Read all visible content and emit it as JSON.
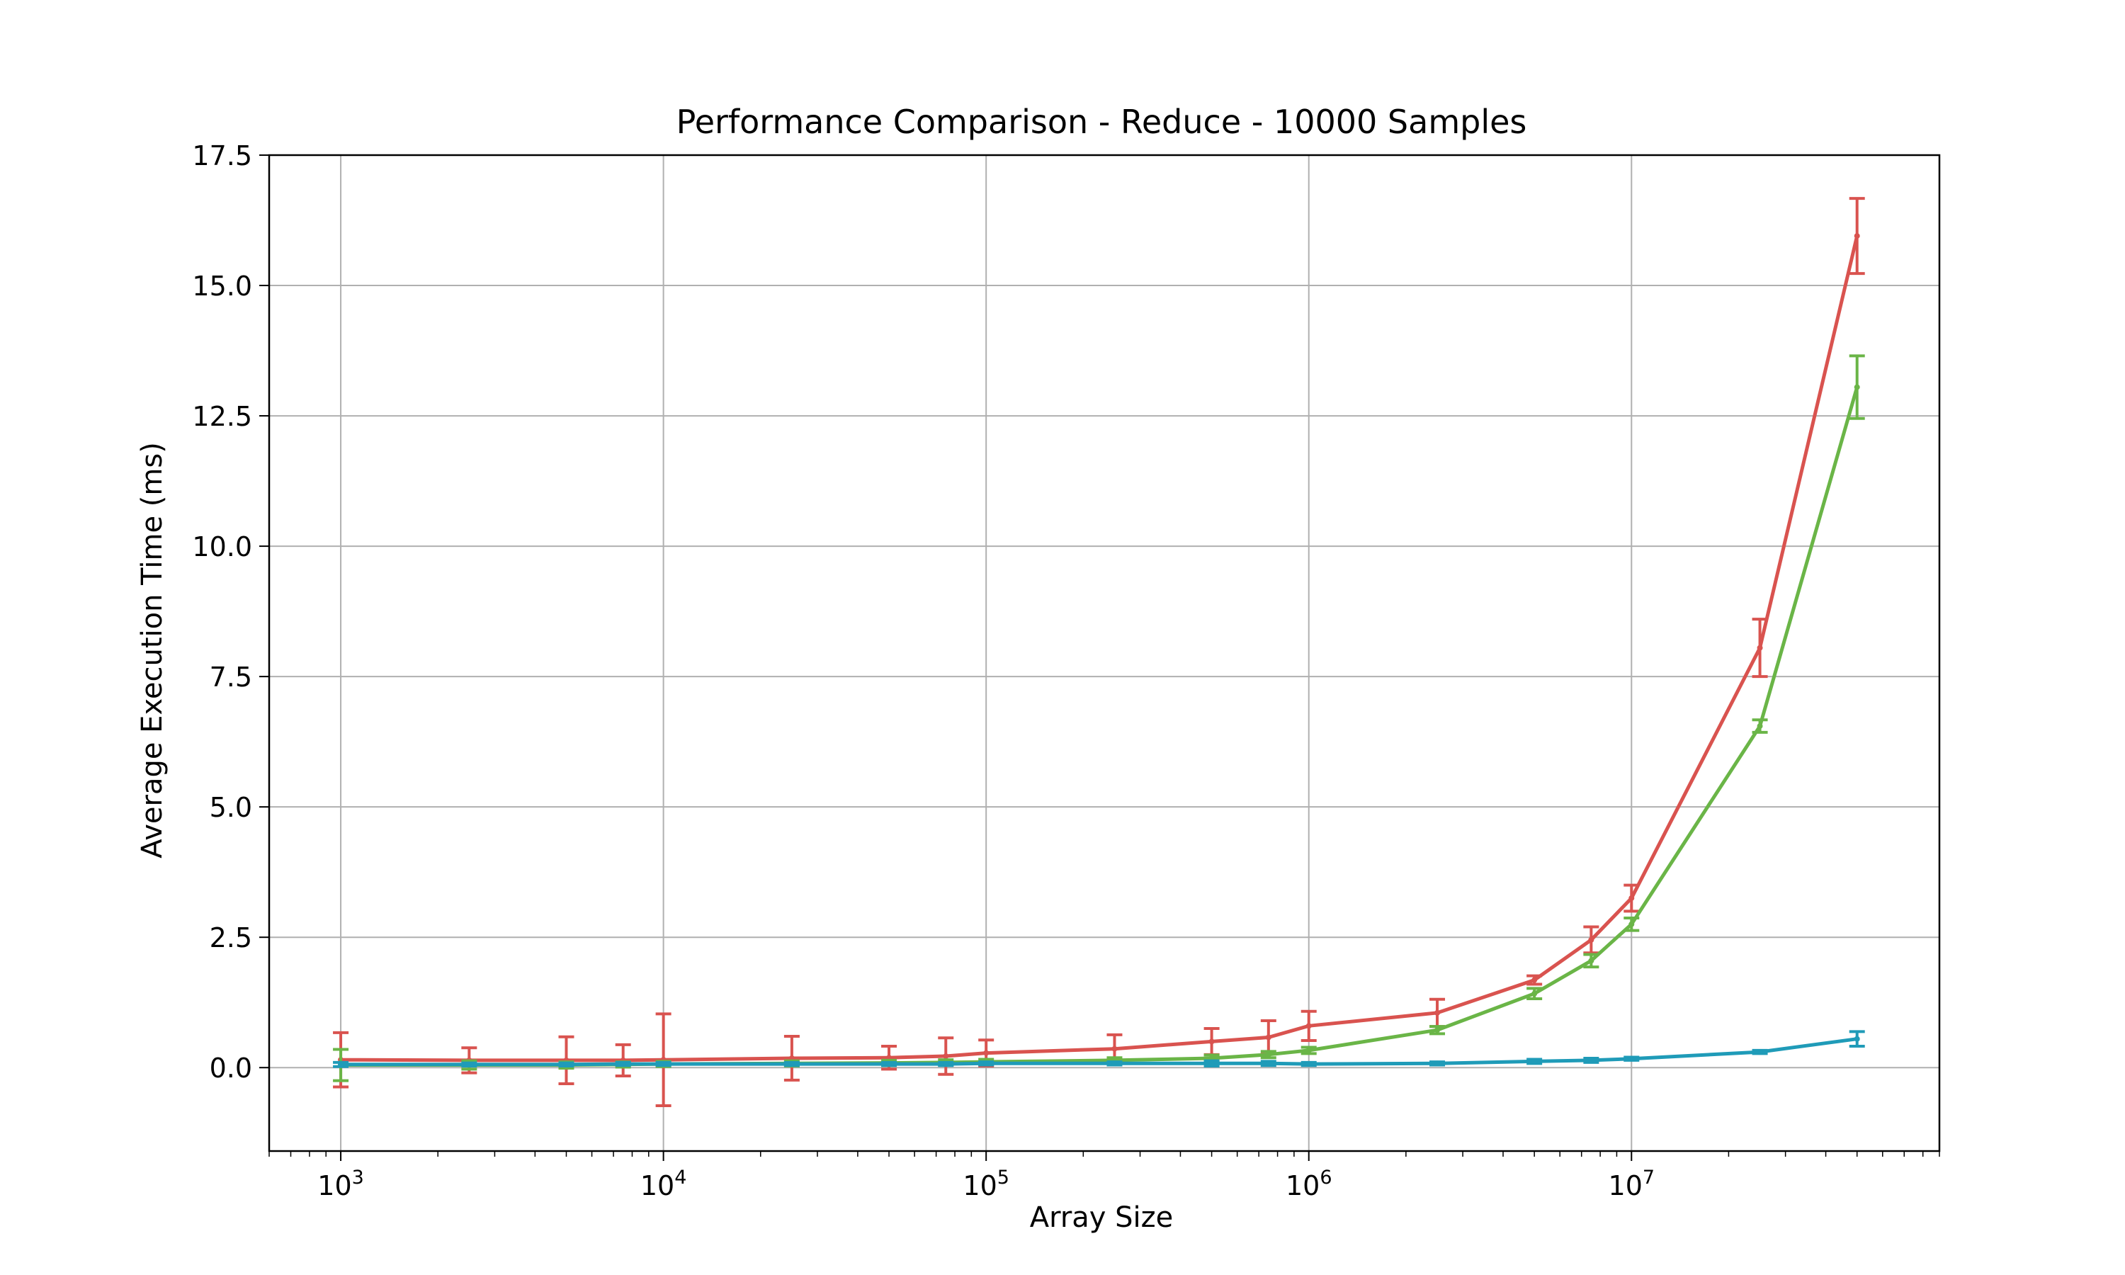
{
  "chart_data": {
    "type": "line",
    "title": "Performance Comparison - Reduce - 10000 Samples",
    "xlabel": "Array Size",
    "ylabel": "Average Execution Time (ms)",
    "xscale": "log",
    "xlim": [
      600,
      90000000
    ],
    "ylim": [
      -1.6,
      17.5
    ],
    "grid": true,
    "y_ticks": [
      0.0,
      2.5,
      5.0,
      7.5,
      10.0,
      12.5,
      15.0,
      17.5
    ],
    "y_tick_labels": [
      "0.0",
      "2.5",
      "5.0",
      "7.5",
      "10.0",
      "12.5",
      "15.0",
      "17.5"
    ],
    "x_ticks": [
      1000,
      10000,
      100000,
      1000000,
      10000000
    ],
    "x_tick_labels": [
      {
        "base": "10",
        "exp": "3"
      },
      {
        "base": "10",
        "exp": "4"
      },
      {
        "base": "10",
        "exp": "5"
      },
      {
        "base": "10",
        "exp": "6"
      },
      {
        "base": "10",
        "exp": "7"
      }
    ],
    "x": [
      1000,
      2500,
      5000,
      7500,
      10000,
      25000,
      50000,
      75000,
      100000,
      250000,
      500000,
      750000,
      1000000,
      2500000,
      5000000,
      7500000,
      10000000,
      25000000,
      50000000
    ],
    "series": [
      {
        "color": "#d9534f",
        "values": [
          0.15,
          0.14,
          0.14,
          0.14,
          0.15,
          0.18,
          0.19,
          0.22,
          0.28,
          0.36,
          0.5,
          0.58,
          0.8,
          1.05,
          1.68,
          2.45,
          3.25,
          8.05,
          15.95
        ],
        "errors": [
          0.52,
          0.24,
          0.45,
          0.3,
          0.88,
          0.42,
          0.22,
          0.35,
          0.25,
          0.27,
          0.25,
          0.32,
          0.28,
          0.26,
          0.08,
          0.25,
          0.25,
          0.55,
          0.72
        ]
      },
      {
        "color": "#6ab547",
        "values": [
          0.05,
          0.05,
          0.05,
          0.06,
          0.07,
          0.08,
          0.09,
          0.1,
          0.11,
          0.14,
          0.18,
          0.25,
          0.33,
          0.72,
          1.42,
          2.05,
          2.75,
          6.55,
          13.05
        ],
        "errors": [
          0.3,
          0.08,
          0.06,
          0.05,
          0.05,
          0.05,
          0.05,
          0.05,
          0.05,
          0.05,
          0.06,
          0.06,
          0.06,
          0.07,
          0.1,
          0.12,
          0.12,
          0.12,
          0.6
        ]
      },
      {
        "color": "#1f9bb8",
        "values": [
          0.06,
          0.06,
          0.06,
          0.07,
          0.07,
          0.07,
          0.07,
          0.07,
          0.08,
          0.08,
          0.08,
          0.08,
          0.07,
          0.08,
          0.12,
          0.14,
          0.17,
          0.3,
          0.55
        ],
        "errors": [
          0.04,
          0.03,
          0.03,
          0.03,
          0.03,
          0.03,
          0.03,
          0.03,
          0.03,
          0.03,
          0.05,
          0.04,
          0.03,
          0.03,
          0.04,
          0.04,
          0.03,
          0.03,
          0.14
        ]
      }
    ]
  }
}
